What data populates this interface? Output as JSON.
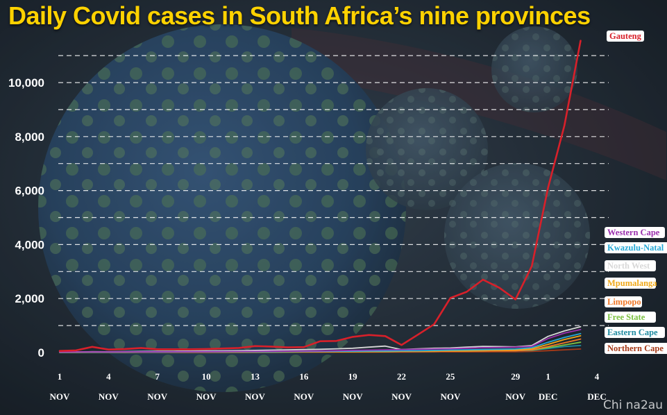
{
  "watermark": "Chi na2au",
  "chart_data": {
    "type": "line",
    "title": "Daily Covid cases in South Africa’s nine provinces",
    "xlabel": "",
    "ylabel": "",
    "ylim": [
      0,
      12000
    ],
    "grid": true,
    "legend_placement": "right, at line ends",
    "y_ticks": [
      0,
      2000,
      4000,
      6000,
      8000,
      10000
    ],
    "y_tick_labels": [
      "0",
      "2,000",
      "4,000",
      "6,000",
      "8,000",
      "10,000"
    ],
    "y_gridlines": [
      1000,
      2000,
      3000,
      4000,
      5000,
      6000,
      7000,
      8000,
      9000,
      10000,
      11000
    ],
    "x": [
      1,
      2,
      3,
      4,
      5,
      6,
      7,
      8,
      9,
      10,
      11,
      12,
      13,
      14,
      15,
      16,
      17,
      18,
      19,
      20,
      21,
      22,
      23,
      24,
      25,
      26,
      27,
      28,
      29,
      30,
      31,
      32,
      33,
      34
    ],
    "x_ticks": [
      {
        "x": 1,
        "day": "1",
        "month": "NOV"
      },
      {
        "x": 4,
        "day": "4",
        "month": "NOV"
      },
      {
        "x": 7,
        "day": "7",
        "month": "NOV"
      },
      {
        "x": 10,
        "day": "10",
        "month": "NOV"
      },
      {
        "x": 13,
        "day": "13",
        "month": "NOV"
      },
      {
        "x": 16,
        "day": "16",
        "month": "NOV"
      },
      {
        "x": 19,
        "day": "19",
        "month": "NOV"
      },
      {
        "x": 22,
        "day": "22",
        "month": "NOV"
      },
      {
        "x": 25,
        "day": "25",
        "month": "NOV"
      },
      {
        "x": 29,
        "day": "29",
        "month": "NOV"
      },
      {
        "x": 31,
        "day": "1",
        "month": "DEC"
      },
      {
        "x": 34,
        "day": "4",
        "month": "DEC"
      }
    ],
    "series": [
      {
        "name": "Gauteng",
        "color": "#d8202a",
        "values": [
          60,
          80,
          210,
          110,
          130,
          170,
          120,
          120,
          120,
          130,
          150,
          170,
          240,
          220,
          190,
          200,
          420,
          430,
          580,
          650,
          610,
          280,
          660,
          1050,
          2020,
          2250,
          2700,
          2400,
          1970,
          3200,
          6100,
          8400,
          11550,
          null
        ]
      },
      {
        "name": "Western Cape",
        "color": "#9b2fae",
        "values": [
          20,
          22,
          24,
          23,
          25,
          26,
          27,
          28,
          30,
          32,
          35,
          38,
          40,
          45,
          50,
          55,
          60,
          70,
          80,
          90,
          100,
          110,
          120,
          130,
          140,
          160,
          180,
          190,
          200,
          230,
          520,
          720,
          850,
          null
        ]
      },
      {
        "name": "Kwazulu-Natal",
        "color": "#26a9d6",
        "values": [
          10,
          12,
          14,
          13,
          15,
          16,
          18,
          20,
          22,
          24,
          26,
          28,
          30,
          32,
          35,
          38,
          40,
          45,
          50,
          55,
          60,
          65,
          70,
          80,
          90,
          100,
          110,
          120,
          130,
          180,
          380,
          560,
          700,
          null
        ]
      },
      {
        "name": "North West",
        "color": "#d8d8d8",
        "values": [
          20,
          25,
          30,
          28,
          35,
          40,
          45,
          50,
          55,
          60,
          65,
          70,
          80,
          90,
          100,
          110,
          120,
          140,
          160,
          200,
          240,
          110,
          140,
          160,
          170,
          200,
          230,
          220,
          210,
          260,
          600,
          800,
          960,
          null
        ]
      },
      {
        "name": "Mpumalanga",
        "color": "#f0a818",
        "values": [
          8,
          9,
          10,
          10,
          11,
          12,
          13,
          14,
          15,
          16,
          17,
          18,
          20,
          22,
          24,
          26,
          28,
          30,
          35,
          40,
          45,
          50,
          55,
          60,
          65,
          70,
          80,
          90,
          100,
          140,
          300,
          480,
          620,
          null
        ]
      },
      {
        "name": "Limpopo",
        "color": "#f07828",
        "values": [
          5,
          6,
          7,
          7,
          8,
          9,
          10,
          11,
          12,
          13,
          14,
          15,
          16,
          18,
          20,
          22,
          24,
          26,
          28,
          30,
          32,
          35,
          40,
          45,
          50,
          55,
          60,
          65,
          70,
          100,
          220,
          360,
          500,
          null
        ]
      },
      {
        "name": "Free State",
        "color": "#7cc242",
        "values": [
          5,
          6,
          7,
          7,
          8,
          9,
          10,
          11,
          12,
          13,
          14,
          15,
          16,
          18,
          20,
          22,
          24,
          26,
          28,
          30,
          32,
          35,
          40,
          45,
          50,
          55,
          60,
          65,
          70,
          90,
          180,
          280,
          380,
          null
        ]
      },
      {
        "name": "Eastern Cape",
        "color": "#1e8aa0",
        "values": [
          5,
          6,
          7,
          7,
          8,
          9,
          10,
          11,
          12,
          13,
          14,
          15,
          16,
          18,
          20,
          22,
          24,
          26,
          28,
          30,
          32,
          35,
          40,
          45,
          50,
          55,
          60,
          65,
          70,
          80,
          150,
          220,
          260,
          null
        ]
      },
      {
        "name": "Northern Cape",
        "color": "#a63a18",
        "values": [
          2,
          3,
          3,
          3,
          4,
          4,
          5,
          5,
          6,
          6,
          7,
          7,
          8,
          8,
          9,
          10,
          11,
          12,
          13,
          14,
          15,
          16,
          18,
          20,
          22,
          24,
          26,
          28,
          30,
          40,
          70,
          100,
          130,
          null
        ]
      }
    ]
  }
}
